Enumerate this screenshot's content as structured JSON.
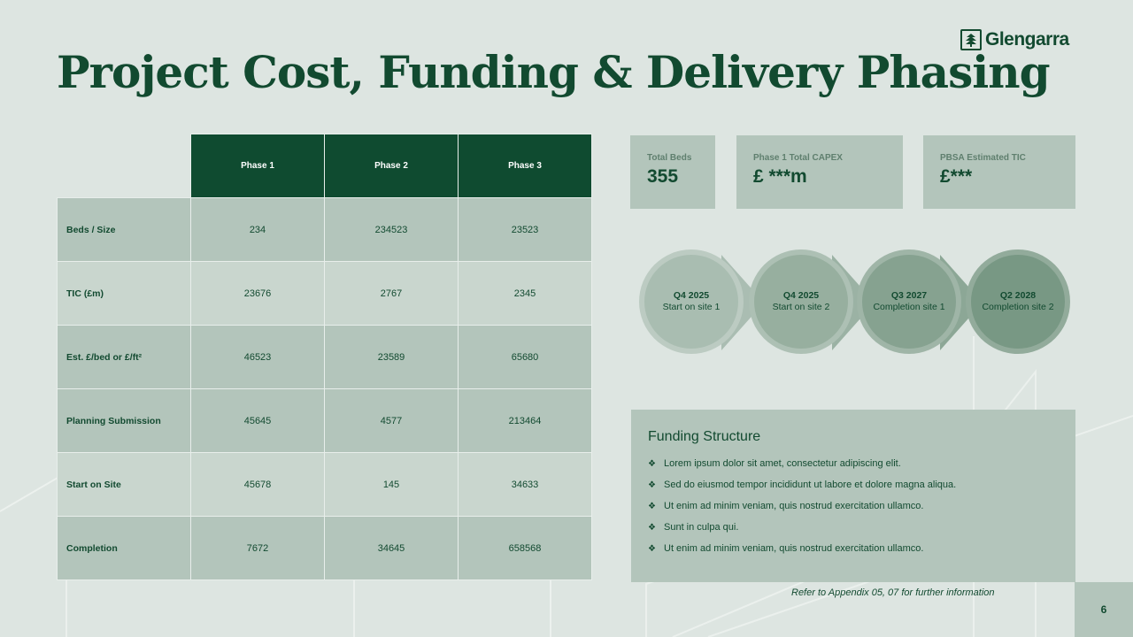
{
  "title": "Project Cost, Funding & Delivery Phasing",
  "logo": {
    "text": "Glengarra",
    "icon": "glengarra-logo-icon"
  },
  "table": {
    "columns": [
      "Phase 1",
      "Phase 2",
      "Phase 3"
    ],
    "rows": [
      {
        "label": "Beds / Size",
        "values": [
          "234",
          "234523",
          "23523"
        ]
      },
      {
        "label": "TIC (£m)",
        "values": [
          "23676",
          "2767",
          "2345"
        ]
      },
      {
        "label": "Est. £/bed or £/ft²",
        "values": [
          "46523",
          "23589",
          "65680"
        ]
      },
      {
        "label": "Planning Submission",
        "values": [
          "45645",
          "4577",
          "213464"
        ]
      },
      {
        "label": "Start on Site",
        "values": [
          "45678",
          "145",
          "34633"
        ]
      },
      {
        "label": "Completion",
        "values": [
          "7672",
          "34645",
          "658568"
        ]
      }
    ]
  },
  "kpis": [
    {
      "label": "Total Beds",
      "value": "355"
    },
    {
      "label": "Phase 1 Total CAPEX",
      "value": "£ ***m"
    },
    {
      "label": "PBSA Estimated TIC",
      "value": "£***"
    }
  ],
  "timeline": [
    {
      "date": "Q4 2025",
      "label": "Start on site 1"
    },
    {
      "date": "Q4 2025",
      "label": "Start on site 2"
    },
    {
      "date": "Q3 2027",
      "label": "Completion site 1"
    },
    {
      "date": "Q2 2028",
      "label": "Completion site 2"
    }
  ],
  "funding": {
    "title": "Funding Structure",
    "items": [
      "Lorem ipsum dolor sit amet, consectetur adipiscing elit.",
      "Sed do eiusmod tempor incididunt ut labore et dolore magna aliqua.",
      "Ut enim ad minim veniam, quis nostrud exercitation ullamco.",
      "Sunt in culpa qui.",
      "Ut enim ad minim veniam, quis nostrud exercitation ullamco."
    ]
  },
  "footnote": "Refer to Appendix 05, 07 for further information",
  "page_number": "6",
  "colors": {
    "brand_green": "#0f4b30",
    "background": "#dde5e1",
    "card": "#b3c5bb",
    "row_light": "#c9d6ce"
  }
}
